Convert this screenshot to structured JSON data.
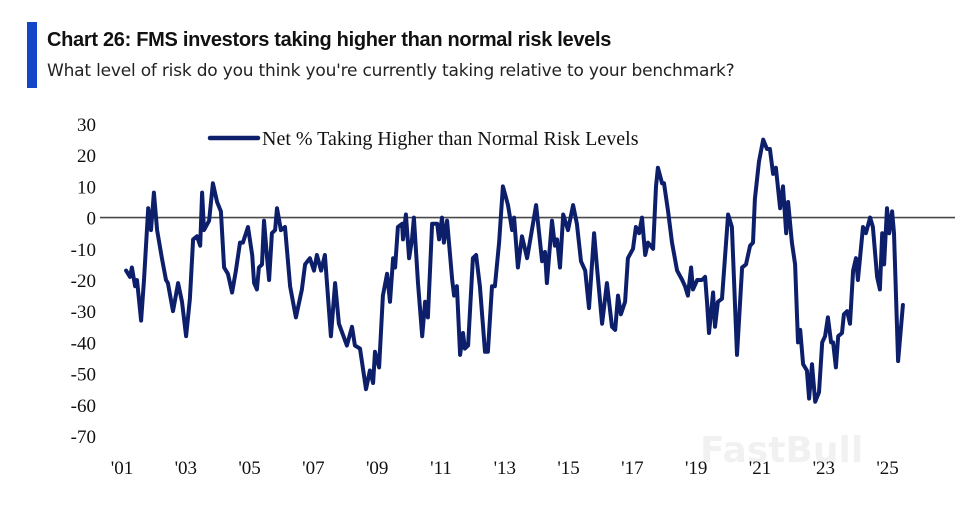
{
  "header": {
    "title": "Chart 26: FMS investors taking higher than normal risk levels",
    "subtitle": "What level of risk do you think you're currently taking relative to your benchmark?",
    "accent_color": "#1446c8"
  },
  "watermark": "FastBull",
  "chart_data": {
    "type": "line",
    "title": "",
    "xlabel": "",
    "ylabel": "",
    "ylim": [
      -70,
      30
    ],
    "yticks": [
      "30",
      "20",
      "10",
      "0",
      "-10",
      "-20",
      "-30",
      "-40",
      "-50",
      "-60",
      "-70"
    ],
    "xlim": [
      2001,
      2026.2
    ],
    "xticks": [
      {
        "year": 2001,
        "label": "'01"
      },
      {
        "year": 2003,
        "label": "'03"
      },
      {
        "year": 2005,
        "label": "'05"
      },
      {
        "year": 2007,
        "label": "'07"
      },
      {
        "year": 2009,
        "label": "'09"
      },
      {
        "year": 2011,
        "label": "'11"
      },
      {
        "year": 2013,
        "label": "'13"
      },
      {
        "year": 2015,
        "label": "'15"
      },
      {
        "year": 2017,
        "label": "'17"
      },
      {
        "year": 2019,
        "label": "'19"
      },
      {
        "year": 2021,
        "label": "'21"
      },
      {
        "year": 2023,
        "label": "'23"
      },
      {
        "year": 2025,
        "label": "'25"
      }
    ],
    "grid": false,
    "reference_line": 0,
    "legend": "top-center",
    "series": [
      {
        "name": "Net % Taking Higher than Normal Risk Levels",
        "color": "#0d1f6b",
        "x": [
          2001.13,
          2001.25,
          2001.31,
          2001.41,
          2001.47,
          2001.6,
          2001.69,
          2001.82,
          2001.91,
          2002.0,
          2002.1,
          2002.25,
          2002.38,
          2002.44,
          2002.6,
          2002.76,
          2002.88,
          2003.01,
          2003.13,
          2003.23,
          2003.35,
          2003.45,
          2003.51,
          2003.57,
          2003.73,
          2003.85,
          2003.98,
          2004.1,
          2004.2,
          2004.32,
          2004.45,
          2004.57,
          2004.7,
          2004.79,
          2004.95,
          2005.08,
          2005.14,
          2005.23,
          2005.29,
          2005.39,
          2005.45,
          2005.55,
          2005.61,
          2005.7,
          2005.8,
          2005.86,
          2005.98,
          2006.11,
          2006.27,
          2006.45,
          2006.64,
          2006.74,
          2006.89,
          2007.02,
          2007.11,
          2007.24,
          2007.36,
          2007.55,
          2007.68,
          2007.8,
          2008.05,
          2008.21,
          2008.3,
          2008.46,
          2008.65,
          2008.77,
          2008.87,
          2008.93,
          2009.06,
          2009.18,
          2009.31,
          2009.4,
          2009.5,
          2009.56,
          2009.65,
          2009.78,
          2009.81,
          2009.9,
          2010.0,
          2010.09,
          2010.15,
          2010.28,
          2010.41,
          2010.5,
          2010.59,
          2010.72,
          2010.88,
          2010.94,
          2011.03,
          2011.09,
          2011.19,
          2011.35,
          2011.41,
          2011.5,
          2011.6,
          2011.69,
          2011.75,
          2011.85,
          2012.0,
          2012.1,
          2012.22,
          2012.38,
          2012.47,
          2012.6,
          2012.69,
          2012.82,
          2012.94,
          2013.1,
          2013.23,
          2013.29,
          2013.41,
          2013.54,
          2013.7,
          2013.85,
          2013.98,
          2014.17,
          2014.26,
          2014.32,
          2014.48,
          2014.57,
          2014.64,
          2014.73,
          2014.83,
          2014.98,
          2015.14,
          2015.26,
          2015.39,
          2015.52,
          2015.64,
          2015.8,
          2015.89,
          2016.05,
          2016.2,
          2016.36,
          2016.46,
          2016.55,
          2016.64,
          2016.77,
          2016.86,
          2017.02,
          2017.11,
          2017.21,
          2017.3,
          2017.4,
          2017.49,
          2017.65,
          2017.74,
          2017.8,
          2017.93,
          2017.99,
          2018.12,
          2018.24,
          2018.4,
          2018.56,
          2018.65,
          2018.74,
          2018.84,
          2018.9,
          2019.03,
          2019.18,
          2019.28,
          2019.34,
          2019.4,
          2019.53,
          2019.59,
          2019.68,
          2019.81,
          2020.0,
          2020.12,
          2020.28,
          2020.44,
          2020.56,
          2020.69,
          2020.78,
          2020.84,
          2020.97,
          2021.1,
          2021.22,
          2021.31,
          2021.41,
          2021.5,
          2021.63,
          2021.72,
          2021.82,
          2021.88,
          2022.0,
          2022.1,
          2022.19,
          2022.26,
          2022.35,
          2022.47,
          2022.54,
          2022.63,
          2022.73,
          2022.85,
          2022.95,
          2023.04,
          2023.13,
          2023.23,
          2023.29,
          2023.38,
          2023.45,
          2023.57,
          2023.63,
          2023.73,
          2023.82,
          2023.92,
          2024.01,
          2024.07,
          2024.23,
          2024.32,
          2024.45,
          2024.54,
          2024.67,
          2024.76,
          2024.83,
          2024.89,
          2024.98,
          2025.05,
          2025.14,
          2025.2,
          2025.33,
          2025.48
        ],
        "y": [
          -17,
          -19,
          -16,
          -22,
          -20,
          -33,
          -20,
          3,
          -4,
          8,
          -4,
          -13,
          -20,
          -21,
          -30,
          -21,
          -27,
          -38,
          -26,
          -7,
          -6,
          -9,
          8,
          -4,
          -1,
          11,
          5,
          2,
          -16,
          -18,
          -24,
          -17,
          -8,
          -8,
          -3,
          -12,
          -21,
          -23,
          -16,
          -15,
          -1,
          -13,
          -20,
          -5,
          -4,
          3,
          -4,
          -3,
          -22,
          -32,
          -23,
          -15,
          -13,
          -17,
          -12,
          -17,
          -12,
          -38,
          -21,
          -34,
          -41,
          -35,
          -41,
          -42,
          -55,
          -49,
          -53,
          -43,
          -48,
          -25,
          -18,
          -27,
          -13,
          -16,
          -3,
          -2,
          -7,
          1,
          -13,
          -7,
          0,
          -21,
          -38,
          -27,
          -32,
          -2,
          -2,
          -7,
          0,
          -8,
          -1,
          -20,
          -25,
          -22,
          -44,
          -37,
          -42,
          -41,
          -13,
          -12,
          -22,
          -43,
          -43,
          -22,
          -22,
          -8,
          10,
          4,
          -4,
          0,
          -16,
          -6,
          -13,
          -4,
          4,
          -14,
          -11,
          -21,
          -1,
          -9,
          -7,
          -16,
          1,
          -4,
          4,
          -2,
          -14,
          -17,
          -29,
          -5,
          -16,
          -34,
          -21,
          -35,
          -36,
          -25,
          -31,
          -27,
          -13,
          -10,
          -3,
          -5,
          0,
          -12,
          -8,
          -10,
          10,
          16,
          11,
          11,
          2,
          -8,
          -17,
          -20,
          -22,
          -25,
          -16,
          -23,
          -20,
          -20,
          -19,
          -27,
          -37,
          -24,
          -35,
          -27,
          -26,
          1,
          -3,
          -44,
          -16,
          -15,
          -9,
          -8,
          6,
          18,
          25,
          22,
          22,
          14,
          16,
          3,
          10,
          -5,
          5,
          -8,
          -15,
          -40,
          -36,
          -47,
          -49,
          -58,
          -47,
          -59,
          -56,
          -40,
          -38,
          -32,
          -40,
          -40,
          -48,
          -38,
          -37,
          -31,
          -30,
          -34,
          -17,
          -13,
          -20,
          -3,
          -5,
          0,
          -3,
          -19,
          -23,
          -5,
          -15,
          3,
          -5,
          2,
          -5,
          -46,
          -28
        ]
      }
    ]
  }
}
